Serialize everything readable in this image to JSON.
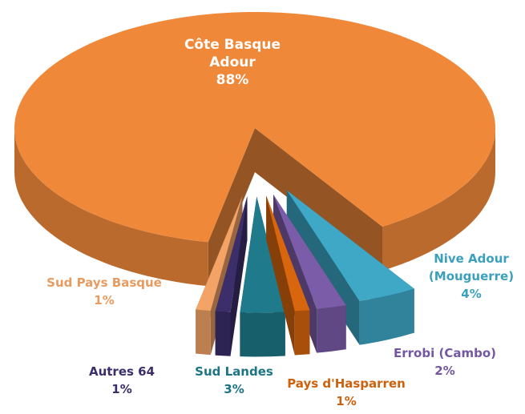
{
  "chart_data": {
    "type": "pie",
    "categories": [
      "Côte Basque Adour",
      "Nive Adour (Mouguerre)",
      "Errobi (Cambo)",
      "Pays d'Hasparren",
      "Sud Landes",
      "Autres 64",
      "Sud Pays Basque"
    ],
    "values": [
      88,
      4,
      2,
      1,
      3,
      1,
      1
    ],
    "value_labels": [
      "88%",
      "4%",
      "2%",
      "1%",
      "3%",
      "1%",
      "1%"
    ],
    "colors": [
      "#f0883a",
      "#3ea8c6",
      "#7a5ca8",
      "#d8660e",
      "#1f7a8b",
      "#3b2e6a",
      "#f3a366"
    ]
  }
}
